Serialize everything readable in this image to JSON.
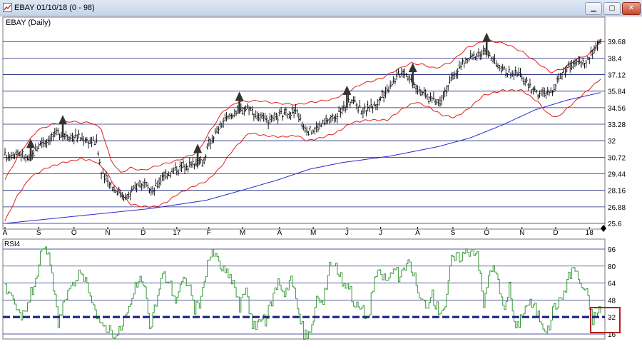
{
  "window": {
    "title": "EBAY 01/10/18 (0 - 98)",
    "minimize_glyph": "▁",
    "maximize_glyph": "▢",
    "close_glyph": "✕"
  },
  "icons": {
    "app": "chart-window-icon",
    "arrow": "up-arrow-icon",
    "marker": "diamond-icon"
  },
  "colors": {
    "price": "#000000",
    "bollinger": "#e0201a",
    "moving_average": "#2a2ad0",
    "rsi": "#3a9a3a",
    "threshold": "#1a237e",
    "highlight": "#b02020",
    "arrow": "#333333",
    "grid": "#1a237e"
  },
  "chart_data": [
    {
      "type": "line",
      "title": "EBAY (Daily)",
      "y_ticks": [
        "39.68",
        "38.4",
        "37.12",
        "35.84",
        "34.56",
        "33.28",
        "32",
        "30.72",
        "29.44",
        "28.16",
        "26.88",
        "25.6"
      ],
      "ylim": [
        25.6,
        40.3
      ],
      "x_ticks": [
        "A",
        "S",
        "O",
        "N",
        "D",
        "17",
        "F",
        "M",
        "A",
        "M",
        "J",
        "J",
        "A",
        "S",
        "O",
        "N",
        "D",
        "18"
      ],
      "x_tick_index": [
        0,
        21,
        43,
        64,
        86,
        107,
        127,
        148,
        171,
        192,
        213,
        234,
        257,
        279,
        300,
        322,
        343,
        364
      ],
      "n_days": 372,
      "series": [
        {
          "id": "price",
          "kind": "ohlc",
          "anchors": [
            [
              0,
              30.8
            ],
            [
              8,
              31.1
            ],
            [
              15,
              30.5
            ],
            [
              22,
              31.8
            ],
            [
              33,
              32.6
            ],
            [
              45,
              32.3
            ],
            [
              52,
              32.0
            ],
            [
              57,
              31.9
            ],
            [
              60,
              29.5
            ],
            [
              68,
              28.3
            ],
            [
              76,
              27.6
            ],
            [
              84,
              28.8
            ],
            [
              92,
              28.0
            ],
            [
              98,
              29.3
            ],
            [
              112,
              30.1
            ],
            [
              124,
              30.4
            ],
            [
              127,
              31.8
            ],
            [
              135,
              33.3
            ],
            [
              143,
              34.2
            ],
            [
              152,
              34.6
            ],
            [
              158,
              33.8
            ],
            [
              165,
              33.5
            ],
            [
              172,
              34.0
            ],
            [
              182,
              34.3
            ],
            [
              185,
              33.2
            ],
            [
              190,
              32.7
            ],
            [
              199,
              33.4
            ],
            [
              207,
              34.0
            ],
            [
              216,
              35.2
            ],
            [
              223,
              34.3
            ],
            [
              232,
              34.9
            ],
            [
              240,
              36.4
            ],
            [
              248,
              37.5
            ],
            [
              255,
              36.4
            ],
            [
              263,
              35.4
            ],
            [
              270,
              35.0
            ],
            [
              278,
              36.7
            ],
            [
              285,
              38.0
            ],
            [
              293,
              38.6
            ],
            [
              300,
              38.9
            ],
            [
              307,
              37.7
            ],
            [
              313,
              37.3
            ],
            [
              322,
              37.0
            ],
            [
              327,
              36.2
            ],
            [
              332,
              35.6
            ],
            [
              340,
              35.7
            ],
            [
              346,
              37.1
            ],
            [
              353,
              38.0
            ],
            [
              362,
              38.1
            ],
            [
              371,
              39.8
            ]
          ]
        },
        {
          "id": "bollinger-upper",
          "kind": "line",
          "anchors": [
            [
              0,
              29.0
            ],
            [
              10,
              31.2
            ],
            [
              20,
              32.8
            ],
            [
              30,
              33.3
            ],
            [
              40,
              33.5
            ],
            [
              48,
              33.4
            ],
            [
              54,
              33.4
            ],
            [
              60,
              32.9
            ],
            [
              66,
              30.5
            ],
            [
              72,
              29.5
            ],
            [
              78,
              29.9
            ],
            [
              86,
              29.7
            ],
            [
              96,
              30.1
            ],
            [
              108,
              30.5
            ],
            [
              120,
              31.1
            ],
            [
              128,
              32.8
            ],
            [
              136,
              34.3
            ],
            [
              145,
              35.0
            ],
            [
              158,
              35.1
            ],
            [
              170,
              34.9
            ],
            [
              182,
              34.8
            ],
            [
              192,
              35.0
            ],
            [
              204,
              35.2
            ],
            [
              214,
              35.8
            ],
            [
              222,
              36.4
            ],
            [
              234,
              36.8
            ],
            [
              244,
              37.5
            ],
            [
              253,
              38.0
            ],
            [
              260,
              37.9
            ],
            [
              268,
              37.6
            ],
            [
              278,
              38.1
            ],
            [
              288,
              39.2
            ],
            [
              300,
              39.8
            ],
            [
              312,
              39.5
            ],
            [
              322,
              38.9
            ],
            [
              332,
              38.0
            ],
            [
              340,
              37.3
            ],
            [
              348,
              37.6
            ],
            [
              356,
              38.3
            ],
            [
              364,
              38.7
            ],
            [
              371,
              39.8
            ]
          ]
        },
        {
          "id": "bollinger-lower",
          "kind": "line",
          "anchors": [
            [
              0,
              25.8
            ],
            [
              8,
              27.8
            ],
            [
              16,
              29.2
            ],
            [
              26,
              29.9
            ],
            [
              36,
              30.3
            ],
            [
              48,
              30.6
            ],
            [
              56,
              30.4
            ],
            [
              62,
              29.8
            ],
            [
              70,
              28.2
            ],
            [
              78,
              27.1
            ],
            [
              86,
              26.9
            ],
            [
              94,
              26.9
            ],
            [
              100,
              27.2
            ],
            [
              108,
              27.9
            ],
            [
              118,
              28.5
            ],
            [
              126,
              28.9
            ],
            [
              134,
              29.9
            ],
            [
              142,
              31.3
            ],
            [
              152,
              32.6
            ],
            [
              162,
              32.4
            ],
            [
              172,
              32.3
            ],
            [
              182,
              32.4
            ],
            [
              188,
              32.0
            ],
            [
              196,
              32.2
            ],
            [
              206,
              32.6
            ],
            [
              216,
              33.4
            ],
            [
              226,
              33.6
            ],
            [
              238,
              33.6
            ],
            [
              248,
              34.5
            ],
            [
              256,
              35.0
            ],
            [
              264,
              34.6
            ],
            [
              272,
              34.0
            ],
            [
              280,
              33.8
            ],
            [
              288,
              34.4
            ],
            [
              298,
              35.5
            ],
            [
              310,
              35.9
            ],
            [
              322,
              35.9
            ],
            [
              332,
              35.0
            ],
            [
              338,
              34.1
            ],
            [
              344,
              33.8
            ],
            [
              352,
              34.7
            ],
            [
              362,
              35.8
            ],
            [
              371,
              36.8
            ]
          ]
        },
        {
          "id": "moving-average",
          "kind": "line",
          "anchors": [
            [
              0,
              25.6
            ],
            [
              30,
              25.98
            ],
            [
              60,
              26.36
            ],
            [
              90,
              26.74
            ],
            [
              125,
              27.38
            ],
            [
              150,
              28.25
            ],
            [
              170,
              28.97
            ],
            [
              190,
              29.81
            ],
            [
              210,
              30.31
            ],
            [
              240,
              30.81
            ],
            [
              270,
              31.55
            ],
            [
              290,
              32.23
            ],
            [
              310,
              33.23
            ],
            [
              330,
              34.38
            ],
            [
              350,
              35.14
            ],
            [
              371,
              35.73
            ]
          ]
        }
      ]
    },
    {
      "type": "line",
      "title": "RSI4",
      "y_ticks": [
        "96",
        "80",
        "64",
        "48",
        "32",
        "16"
      ],
      "ylim": [
        16,
        96
      ],
      "threshold": 32,
      "series": [
        {
          "id": "rsi",
          "kind": "step",
          "anchors": [
            [
              0,
              58
            ],
            [
              5,
              44
            ],
            [
              10,
              30
            ],
            [
              14,
              46
            ],
            [
              18,
              62
            ],
            [
              22,
              88
            ],
            [
              26,
              96
            ],
            [
              30,
              60
            ],
            [
              33,
              28
            ],
            [
              37,
              48
            ],
            [
              41,
              56
            ],
            [
              45,
              72
            ],
            [
              49,
              66
            ],
            [
              53,
              57
            ],
            [
              56,
              38
            ],
            [
              59,
              22
            ],
            [
              62,
              24
            ],
            [
              66,
              20
            ],
            [
              70,
              14
            ],
            [
              74,
              30
            ],
            [
              78,
              42
            ],
            [
              82,
              64
            ],
            [
              86,
              66
            ],
            [
              90,
              22
            ],
            [
              94,
              46
            ],
            [
              98,
              72
            ],
            [
              102,
              66
            ],
            [
              106,
              48
            ],
            [
              110,
              64
            ],
            [
              114,
              66
            ],
            [
              118,
              40
            ],
            [
              122,
              46
            ],
            [
              126,
              86
            ],
            [
              130,
              92
            ],
            [
              134,
              80
            ],
            [
              138,
              72
            ],
            [
              142,
              66
            ],
            [
              146,
              40
            ],
            [
              150,
              62
            ],
            [
              154,
              20
            ],
            [
              158,
              30
            ],
            [
              162,
              28
            ],
            [
              166,
              48
            ],
            [
              170,
              66
            ],
            [
              174,
              55
            ],
            [
              178,
              70
            ],
            [
              182,
              40
            ],
            [
              186,
              16
            ],
            [
              190,
              14
            ],
            [
              194,
              50
            ],
            [
              198,
              44
            ],
            [
              202,
              84
            ],
            [
              206,
              80
            ],
            [
              210,
              66
            ],
            [
              214,
              62
            ],
            [
              218,
              42
            ],
            [
              222,
              40
            ],
            [
              226,
              30
            ],
            [
              230,
              70
            ],
            [
              234,
              72
            ],
            [
              238,
              66
            ],
            [
              242,
              78
            ],
            [
              246,
              68
            ],
            [
              250,
              82
            ],
            [
              254,
              76
            ],
            [
              258,
              48
            ],
            [
              262,
              44
            ],
            [
              266,
              52
            ],
            [
              270,
              38
            ],
            [
              274,
              44
            ],
            [
              278,
              86
            ],
            [
              282,
              88
            ],
            [
              286,
              92
            ],
            [
              290,
              96
            ],
            [
              294,
              94
            ],
            [
              298,
              42
            ],
            [
              302,
              80
            ],
            [
              306,
              72
            ],
            [
              310,
              40
            ],
            [
              314,
              60
            ],
            [
              318,
              18
            ],
            [
              322,
              36
            ],
            [
              326,
              46
            ],
            [
              330,
              40
            ],
            [
              334,
              28
            ],
            [
              338,
              18
            ],
            [
              342,
              44
            ],
            [
              346,
              46
            ],
            [
              350,
              66
            ],
            [
              354,
              80
            ],
            [
              358,
              64
            ],
            [
              362,
              54
            ],
            [
              366,
              30
            ],
            [
              371,
              40
            ]
          ]
        }
      ]
    }
  ]
}
